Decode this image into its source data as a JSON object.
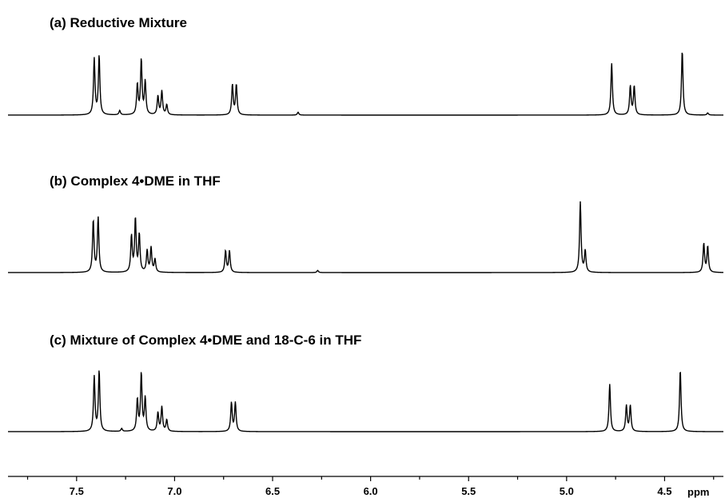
{
  "chart_data": {
    "type": "line",
    "x_unit": "ppm",
    "xlim": [
      7.85,
      4.2
    ],
    "x_reversed": true,
    "grid": false,
    "xticks": [
      7.5,
      7.0,
      6.5,
      6.0,
      5.5,
      5.0,
      4.5
    ],
    "xtick_labels": [
      "7.5",
      "7.0",
      "6.5",
      "6.0",
      "5.5",
      "5.0",
      "4.5"
    ],
    "xlabel": "ppm",
    "spectra": [
      {
        "title": "(a) Reductive Mixture",
        "peaks": [
          {
            "ppm": 7.41,
            "height": 0.78
          },
          {
            "ppm": 7.385,
            "height": 0.82
          },
          {
            "ppm": 7.28,
            "height": 0.06
          },
          {
            "ppm": 7.19,
            "height": 0.42
          },
          {
            "ppm": 7.17,
            "height": 0.76
          },
          {
            "ppm": 7.15,
            "height": 0.46
          },
          {
            "ppm": 7.085,
            "height": 0.26
          },
          {
            "ppm": 7.065,
            "height": 0.33
          },
          {
            "ppm": 7.04,
            "height": 0.14
          },
          {
            "ppm": 6.705,
            "height": 0.42
          },
          {
            "ppm": 6.685,
            "height": 0.42
          },
          {
            "ppm": 6.37,
            "height": 0.04
          },
          {
            "ppm": 4.77,
            "height": 0.72
          },
          {
            "ppm": 4.675,
            "height": 0.4
          },
          {
            "ppm": 4.655,
            "height": 0.4
          },
          {
            "ppm": 4.41,
            "height": 0.9
          },
          {
            "ppm": 4.28,
            "height": 0.03
          }
        ]
      },
      {
        "title": "(b) Complex 4•DME in THF",
        "peaks": [
          {
            "ppm": 7.415,
            "height": 0.72
          },
          {
            "ppm": 7.39,
            "height": 0.76
          },
          {
            "ppm": 7.22,
            "height": 0.5
          },
          {
            "ppm": 7.2,
            "height": 0.74
          },
          {
            "ppm": 7.18,
            "height": 0.52
          },
          {
            "ppm": 7.14,
            "height": 0.3
          },
          {
            "ppm": 7.12,
            "height": 0.34
          },
          {
            "ppm": 7.1,
            "height": 0.18
          },
          {
            "ppm": 6.74,
            "height": 0.3
          },
          {
            "ppm": 6.72,
            "height": 0.3
          },
          {
            "ppm": 6.27,
            "height": 0.03
          },
          {
            "ppm": 4.93,
            "height": 0.98
          },
          {
            "ppm": 4.905,
            "height": 0.3
          },
          {
            "ppm": 4.3,
            "height": 0.4
          },
          {
            "ppm": 4.28,
            "height": 0.36
          }
        ]
      },
      {
        "title": "(c) Mixture of Complex 4•DME and 18-C-6 in THF",
        "peaks": [
          {
            "ppm": 7.41,
            "height": 0.76
          },
          {
            "ppm": 7.385,
            "height": 0.84
          },
          {
            "ppm": 7.27,
            "height": 0.04
          },
          {
            "ppm": 7.19,
            "height": 0.44
          },
          {
            "ppm": 7.17,
            "height": 0.8
          },
          {
            "ppm": 7.15,
            "height": 0.46
          },
          {
            "ppm": 7.085,
            "height": 0.26
          },
          {
            "ppm": 7.065,
            "height": 0.34
          },
          {
            "ppm": 7.04,
            "height": 0.16
          },
          {
            "ppm": 6.71,
            "height": 0.4
          },
          {
            "ppm": 6.69,
            "height": 0.4
          },
          {
            "ppm": 4.78,
            "height": 0.66
          },
          {
            "ppm": 4.695,
            "height": 0.36
          },
          {
            "ppm": 4.675,
            "height": 0.36
          },
          {
            "ppm": 4.42,
            "height": 0.86
          }
        ]
      }
    ]
  }
}
